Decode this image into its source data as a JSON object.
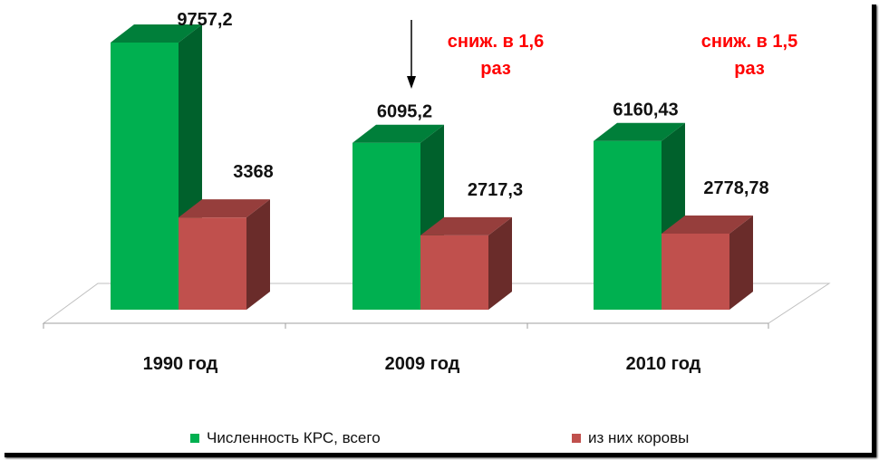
{
  "chart_data": {
    "type": "bar",
    "categories": [
      "1990 год",
      "2009 год",
      "2010 год"
    ],
    "series": [
      {
        "name": "Численность КРС, всего",
        "values": [
          9757.2,
          6095.2,
          6160.43
        ],
        "labels": [
          "9757,2",
          "6095,2",
          "6160,43"
        ],
        "color": "#00b050"
      },
      {
        "name": "из них коровы",
        "values": [
          3368,
          2717.3,
          2778.78
        ],
        "labels": [
          "3368",
          "2717,3",
          "2778,78"
        ],
        "color": "#c0504d"
      }
    ],
    "annotations": [
      {
        "category": "2009 год",
        "lines": [
          "сниж. в 1,6",
          "раз"
        ],
        "color": "#ff0000",
        "arrow": true
      },
      {
        "category": "2010 год",
        "lines": [
          "сниж. в 1,5",
          "раз"
        ],
        "color": "#ff0000",
        "arrow": false
      }
    ],
    "three_d": true,
    "legend_position": "bottom",
    "grid": false
  }
}
